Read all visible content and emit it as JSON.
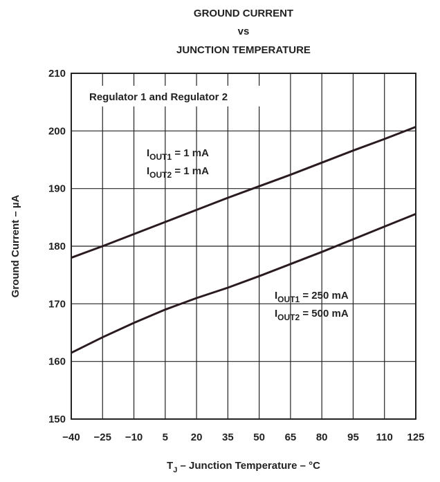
{
  "chart_data": {
    "type": "line",
    "title": [
      "GROUND CURRENT",
      "vs",
      "JUNCTION TEMPERATURE"
    ],
    "x_label": {
      "main": "T",
      "sub": "J",
      "rest": " – Junction Temperature – °C"
    },
    "y_label": "Ground Current – µA",
    "x": [
      -40,
      -25,
      -10,
      5,
      20,
      35,
      50,
      65,
      80,
      95,
      110,
      125
    ],
    "series": [
      {
        "color": "#2a1b1f",
        "values": [
          178,
          180,
          182.1,
          184.2,
          186.3,
          188.4,
          190.4,
          192.4,
          194.5,
          196.6,
          198.6,
          200.7
        ]
      },
      {
        "color": "#2a1b1f",
        "values": [
          161.5,
          164.2,
          166.7,
          169,
          171,
          172.8,
          174.8,
          176.9,
          179,
          181.2,
          183.4,
          185.6
        ]
      }
    ],
    "annotations": [
      {
        "text": "Regulator 1 and Regulator 2"
      },
      {
        "lines": [
          {
            "main": "I",
            "sub": "OUT1",
            "rest": " = 1 mA"
          },
          {
            "main": "I",
            "sub": "OUT2",
            "rest": " = 1 mA"
          }
        ]
      },
      {
        "lines": [
          {
            "main": "I",
            "sub": "OUT1",
            "rest": " = 250 mA"
          },
          {
            "main": "I",
            "sub": "OUT2",
            "rest": " = 500 mA"
          }
        ]
      }
    ],
    "xlim": [
      -40,
      125
    ],
    "xticks": [
      {
        "value": -40,
        "label": "−40"
      },
      {
        "value": -25,
        "label": "−25"
      },
      {
        "value": -10,
        "label": "−10"
      },
      5,
      20,
      35,
      50,
      65,
      80,
      95,
      110,
      125
    ],
    "ylim": [
      150,
      210
    ],
    "yticks": [
      150,
      160,
      170,
      180,
      190,
      200,
      210
    ],
    "grid": true
  }
}
